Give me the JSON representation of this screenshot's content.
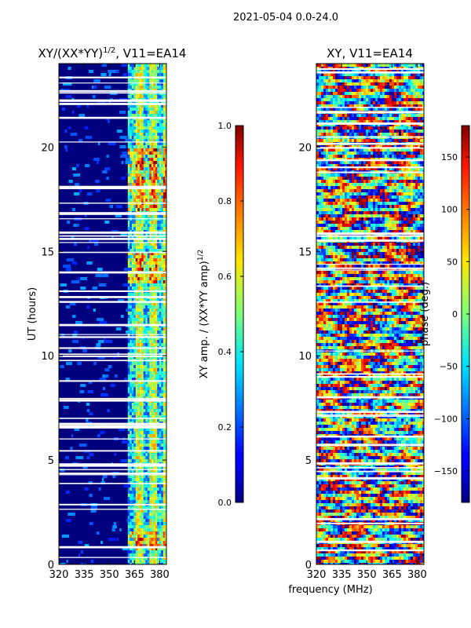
{
  "figure_title": "2021-05-04 0.0-24.0",
  "shared_xlabel": "frequency (MHz)",
  "colors": {
    "background": "#00007f",
    "gap": "#ffffff"
  },
  "chart_data": [
    {
      "type": "heatmap",
      "title_prefix": "XY/(XX*YY)",
      "title_exponent": "1/2",
      "title_suffix": ", V11=EA14",
      "xlabel": "frequency (MHz)",
      "ylabel": "UT (hours)",
      "xlim": [
        320,
        384
      ],
      "ylim": [
        0,
        24
      ],
      "xticks": [
        320,
        335,
        350,
        365,
        380
      ],
      "yticks": [
        0,
        5,
        10,
        15,
        20
      ],
      "colormap": "jet",
      "colorbar": {
        "label_prefix": "XY amp. / (XX*YY amp)",
        "label_exponent": "1/2",
        "range": [
          0.0,
          1.0
        ],
        "ticks": [
          "0.0",
          "0.2",
          "0.4",
          "0.6",
          "0.8",
          "1.0"
        ]
      },
      "high_band_start_mhz": 361
    },
    {
      "type": "heatmap",
      "title": "XY, V11=EA14",
      "xlabel": "frequency (MHz)",
      "ylabel": "",
      "xlim": [
        320,
        384
      ],
      "ylim": [
        0,
        24
      ],
      "xticks": [
        320,
        335,
        350,
        365,
        380
      ],
      "yticks": [
        0,
        5,
        10,
        15,
        20
      ],
      "colormap": "jet",
      "colorbar": {
        "label": "phase (deg.)",
        "range": [
          -180,
          180
        ],
        "ticks": [
          "-150",
          "-100",
          "-50",
          "0",
          "50",
          "100",
          "150"
        ]
      }
    }
  ]
}
